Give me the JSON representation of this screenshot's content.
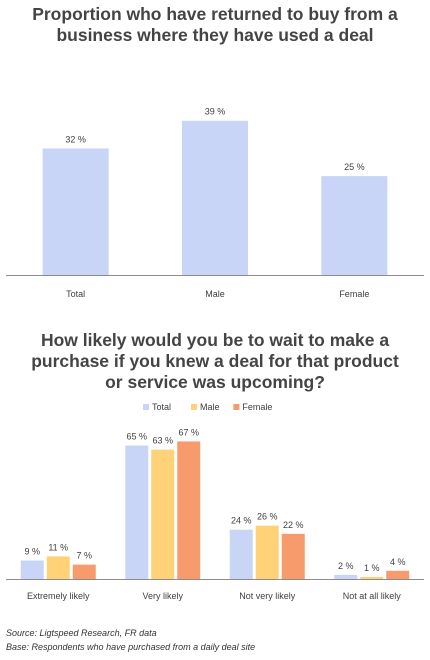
{
  "colors": {
    "total": "#c9d5f7",
    "male": "#ffd277",
    "female": "#f79a6c",
    "axis": "#8c8c8c",
    "text": "#404040"
  },
  "chart_data": [
    {
      "type": "bar",
      "title": [
        "Proportion who have returned to buy from a",
        "business where they have used a deal"
      ],
      "categories": [
        "Total",
        "Male",
        "Female"
      ],
      "values": [
        32,
        39,
        25
      ],
      "value_labels": [
        "32 %",
        "39 %",
        "25 %"
      ],
      "ylim": [
        0,
        45
      ],
      "grid": false,
      "legend": "none"
    },
    {
      "type": "bar",
      "title": [
        "How likely would you be to wait to make a",
        "purchase if you knew a deal for that product",
        "or service was upcoming?"
      ],
      "categories": [
        "Extremely likely",
        "Very likely",
        "Not very likely",
        "Not at all likely"
      ],
      "series": [
        {
          "name": "Total",
          "color": "#c9d5f7",
          "values": [
            9,
            65,
            24,
            2
          ],
          "labels": [
            "9 %",
            "65 %",
            "24 %",
            "2 %"
          ]
        },
        {
          "name": "Male",
          "color": "#ffd277",
          "values": [
            11,
            63,
            26,
            1
          ],
          "labels": [
            "11 %",
            "63 %",
            "26 %",
            "1 %"
          ]
        },
        {
          "name": "Female",
          "color": "#f79a6c",
          "values": [
            7,
            67,
            22,
            4
          ],
          "labels": [
            "7 %",
            "67 %",
            "22 %",
            "4 %"
          ]
        }
      ],
      "ylim": [
        0,
        75
      ],
      "grid": false,
      "legend": "top"
    }
  ],
  "footer": {
    "source": "Source: Ligtspeed Research, FR data",
    "base": "Base: Respondents who have purchased from a daily deal site"
  }
}
